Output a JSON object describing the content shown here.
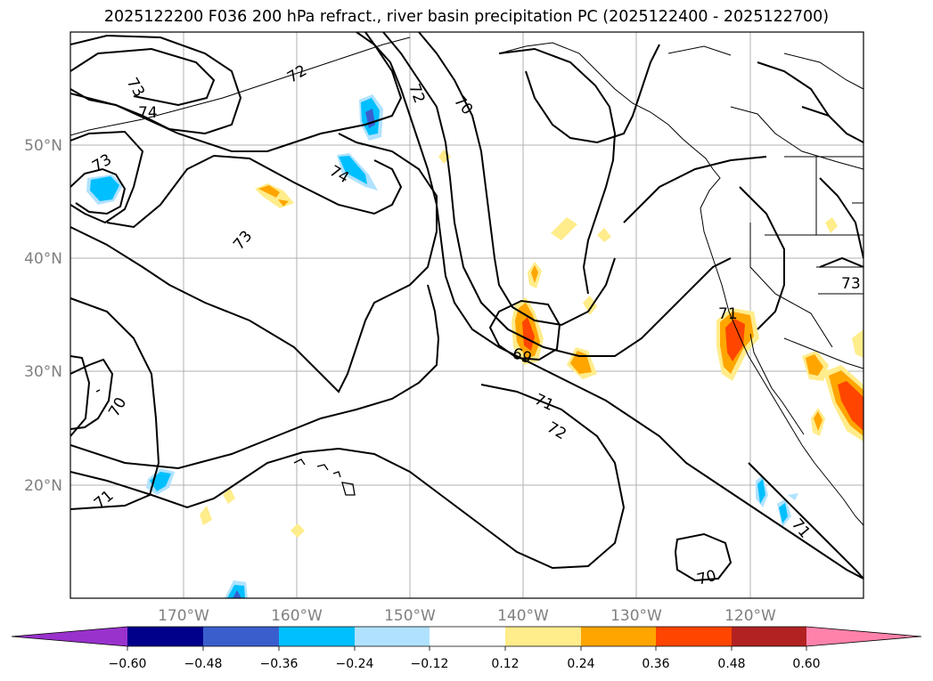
{
  "title": "2025122200 F036 200 hPa refract., river basin precipitation PC (2025122400 - 2025122700)",
  "map": {
    "lat_labels": [
      "50°N",
      "40°N",
      "30°N",
      "20°N"
    ],
    "lon_labels": [
      "170°W",
      "160°W",
      "150°W",
      "140°W",
      "130°W",
      "120°W"
    ],
    "contour_labels": [
      "73",
      "74",
      "72",
      "70",
      "73",
      "74",
      "73",
      "69",
      "71",
      "72",
      "70",
      "71",
      "70",
      "71",
      "73",
      "71",
      "72"
    ]
  },
  "colorbar": {
    "ticks": [
      "−0.60",
      "−0.48",
      "−0.36",
      "−0.24",
      "−0.12",
      "0.12",
      "0.24",
      "0.36",
      "0.48",
      "0.60"
    ],
    "colors": [
      "#9932cc",
      "#00008b",
      "#3a5fcd",
      "#00bfff",
      "#b0e2ff",
      "#ffffff",
      "#ffec8b",
      "#ffa500",
      "#ff4500",
      "#b22222",
      "#ff82ab"
    ]
  }
}
